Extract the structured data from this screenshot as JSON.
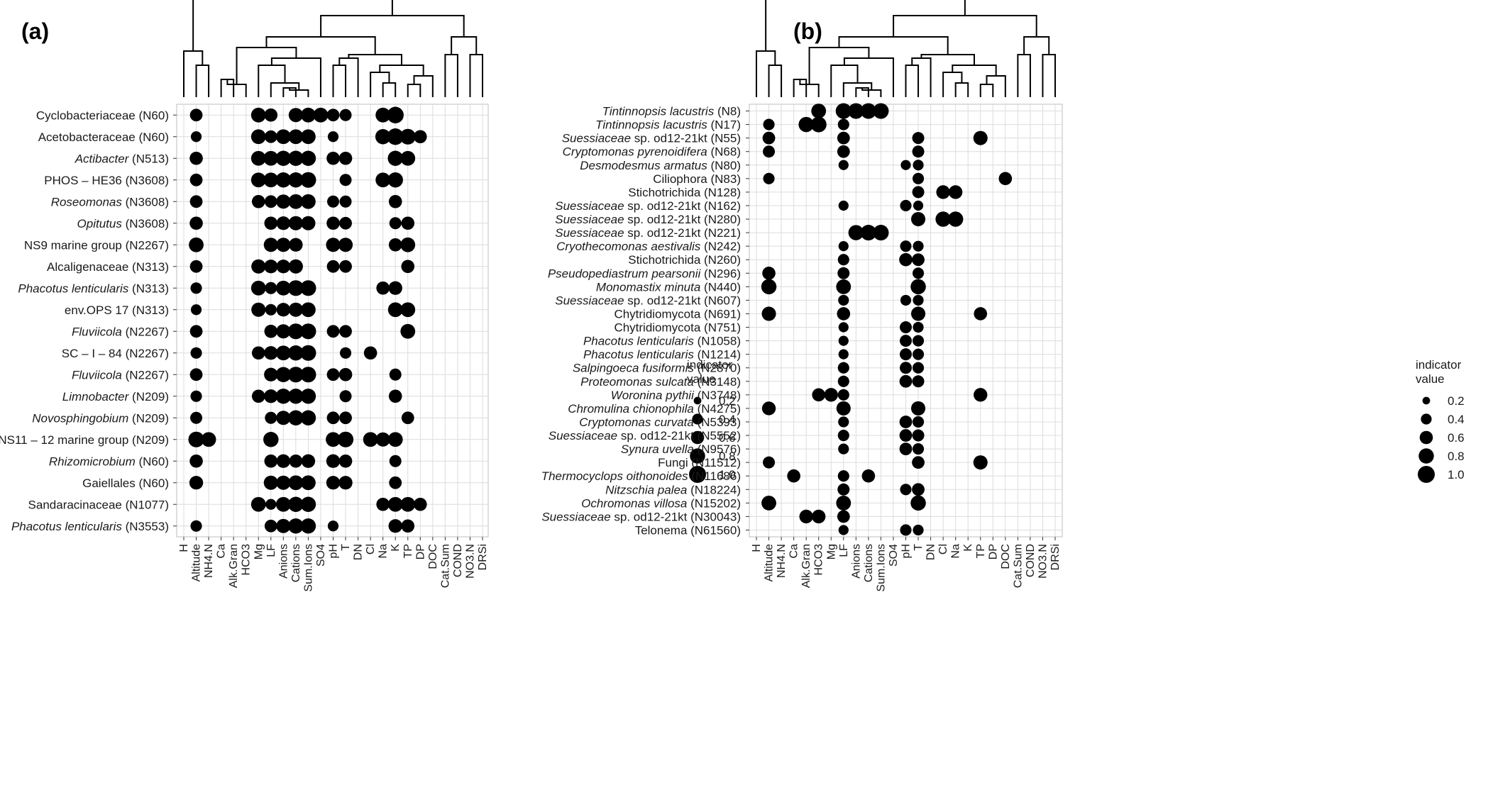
{
  "chart_data": [
    {
      "type": "scatter",
      "panel_label": "(a)",
      "x_categories": [
        "H",
        "Altitude",
        "NH4.N",
        "Ca",
        "Alk.Gran",
        "HCO3",
        "Mg",
        "LF",
        "Anions",
        "Cations",
        "Sum.Ions",
        "SO4",
        "pH",
        "T",
        "DN",
        "Cl",
        "Na",
        "K",
        "TP",
        "DP",
        "DOC",
        "Cat.Sum",
        "COND",
        "NO3.N",
        "DRSi"
      ],
      "rows": [
        {
          "label": "Cyclobacteriaceae (N60)",
          "italic": "",
          "rest": "Cyclobacteriaceae (N60)",
          "points": {
            "Altitude": 0.55,
            "Mg": 0.75,
            "LF": 0.6,
            "Cations": 0.7,
            "Sum.Ions": 0.75,
            "SO4": 0.75,
            "pH": 0.55,
            "T": 0.5,
            "Na": 0.75,
            "K": 0.95
          }
        },
        {
          "label": "Acetobacteraceae (N60)",
          "italic": "",
          "rest": "Acetobacteraceae (N60)",
          "points": {
            "Altitude": 0.4,
            "Mg": 0.75,
            "LF": 0.55,
            "Anions": 0.75,
            "Cations": 0.75,
            "Sum.Ions": 0.75,
            "pH": 0.4,
            "Na": 0.8,
            "K": 0.95,
            "TP": 0.85,
            "DP": 0.6
          }
        },
        {
          "label": "Actibacter (N513)",
          "italic": "Actibacter",
          "rest": " (N513)",
          "points": {
            "Altitude": 0.6,
            "Mg": 0.75,
            "LF": 0.75,
            "Anions": 0.8,
            "Cations": 0.8,
            "Sum.Ions": 0.8,
            "pH": 0.6,
            "T": 0.6,
            "K": 0.8,
            "TP": 0.75
          }
        },
        {
          "label": "PHOS – HE36 (N3608)",
          "italic": "",
          "rest": "PHOS – HE36 (N3608)",
          "points": {
            "Altitude": 0.55,
            "Mg": 0.75,
            "LF": 0.75,
            "Anions": 0.8,
            "Cations": 0.8,
            "Sum.Ions": 0.85,
            "T": 0.5,
            "Na": 0.75,
            "K": 0.8
          }
        },
        {
          "label": "Roseomonas (N3608)",
          "italic": "Roseomonas",
          "rest": " (N3608)",
          "points": {
            "Altitude": 0.55,
            "Mg": 0.6,
            "LF": 0.55,
            "Anions": 0.7,
            "Cations": 0.75,
            "Sum.Ions": 0.75,
            "pH": 0.5,
            "T": 0.5,
            "K": 0.6
          }
        },
        {
          "label": "Opitutus (N3608)",
          "italic": "Opitutus",
          "rest": " (N3608)",
          "points": {
            "Altitude": 0.6,
            "LF": 0.6,
            "Anions": 0.65,
            "Cations": 0.7,
            "Sum.Ions": 0.7,
            "pH": 0.6,
            "T": 0.55,
            "K": 0.5,
            "TP": 0.6
          }
        },
        {
          "label": "NS9 marine group (N2267)",
          "italic": "",
          "rest": "NS9 marine group (N2267)",
          "points": {
            "Altitude": 0.75,
            "LF": 0.7,
            "Anions": 0.7,
            "Cations": 0.65,
            "pH": 0.7,
            "T": 0.7,
            "K": 0.6,
            "TP": 0.75
          }
        },
        {
          "label": "Alcaligenaceae (N313)",
          "italic": "",
          "rest": "Alcaligenaceae (N313)",
          "points": {
            "Altitude": 0.55,
            "Mg": 0.7,
            "LF": 0.65,
            "Anions": 0.65,
            "Cations": 0.7,
            "pH": 0.55,
            "T": 0.55,
            "TP": 0.6
          }
        },
        {
          "label": "Phacotus lenticularis (N313)",
          "italic": "Phacotus lenticularis",
          "rest": " (N313)",
          "points": {
            "Altitude": 0.45,
            "Mg": 0.75,
            "LF": 0.5,
            "Anions": 0.75,
            "Cations": 0.85,
            "Sum.Ions": 0.85,
            "Na": 0.6,
            "K": 0.65
          }
        },
        {
          "label": "env.OPS 17 (N313)",
          "italic": "",
          "rest": "env.OPS 17 (N313)",
          "points": {
            "Altitude": 0.4,
            "Mg": 0.7,
            "LF": 0.45,
            "Anions": 0.65,
            "Cations": 0.7,
            "Sum.Ions": 0.75,
            "K": 0.75,
            "TP": 0.75
          }
        },
        {
          "label": "Fluviicola (N2267)",
          "italic": "Fluviicola",
          "rest": " (N2267)",
          "points": {
            "Altitude": 0.55,
            "LF": 0.6,
            "Anions": 0.7,
            "Cations": 0.85,
            "Sum.Ions": 0.85,
            "pH": 0.55,
            "T": 0.55,
            "TP": 0.75
          }
        },
        {
          "label": "SC – I – 84 (N2267)",
          "italic": "",
          "rest": "SC – I – 84 (N2267)",
          "points": {
            "Altitude": 0.45,
            "Mg": 0.6,
            "LF": 0.65,
            "Anions": 0.75,
            "Cations": 0.8,
            "Sum.Ions": 0.85,
            "T": 0.45,
            "Cl": 0.6
          }
        },
        {
          "label": "Fluviicola (N2267)",
          "italic": "Fluviicola",
          "rest": " (N2267)",
          "points": {
            "Altitude": 0.55,
            "LF": 0.65,
            "Anions": 0.8,
            "Cations": 0.85,
            "Sum.Ions": 0.85,
            "pH": 0.55,
            "T": 0.6,
            "K": 0.5
          }
        },
        {
          "label": "Limnobacter (N209)",
          "italic": "Limnobacter",
          "rest": " (N209)",
          "points": {
            "Altitude": 0.45,
            "Mg": 0.6,
            "LF": 0.65,
            "Anions": 0.8,
            "Cations": 0.8,
            "Sum.Ions": 0.8,
            "T": 0.5,
            "K": 0.6
          }
        },
        {
          "label": "Novosphingobium (N209)",
          "italic": "Novosphingobium",
          "rest": " (N209)",
          "points": {
            "Altitude": 0.5,
            "LF": 0.5,
            "Anions": 0.7,
            "Cations": 0.8,
            "Sum.Ions": 0.8,
            "pH": 0.55,
            "T": 0.55,
            "TP": 0.55
          }
        },
        {
          "label": "NS11 – 12 marine group (N209)",
          "italic": "",
          "rest": "NS11 – 12 marine group (N209)",
          "points": {
            "Altitude": 0.85,
            "NH4.N": 0.75,
            "LF": 0.8,
            "pH": 0.75,
            "T": 0.85,
            "Cl": 0.75,
            "Na": 0.7,
            "K": 0.75
          }
        },
        {
          "label": "Rhizomicrobium (N60)",
          "italic": "Rhizomicrobium",
          "rest": " (N60)",
          "points": {
            "Altitude": 0.6,
            "LF": 0.6,
            "Anions": 0.65,
            "Cations": 0.6,
            "Sum.Ions": 0.65,
            "pH": 0.65,
            "T": 0.6,
            "K": 0.5
          }
        },
        {
          "label": "Gaiellales (N60)",
          "italic": "",
          "rest": "Gaiellales (N60)",
          "points": {
            "Altitude": 0.65,
            "LF": 0.7,
            "Anions": 0.7,
            "Cations": 0.75,
            "Sum.Ions": 0.75,
            "pH": 0.65,
            "T": 0.65,
            "K": 0.55
          }
        },
        {
          "label": "Sandaracinaceae (N1077)",
          "italic": "",
          "rest": "Sandaracinaceae (N1077)",
          "points": {
            "Mg": 0.75,
            "LF": 0.4,
            "Anions": 0.75,
            "Cations": 0.8,
            "Sum.Ions": 0.8,
            "Na": 0.6,
            "K": 0.75,
            "TP": 0.75,
            "DP": 0.6
          }
        },
        {
          "label": "Phacotus lenticularis (N3553)",
          "italic": "Phacotus lenticularis",
          "rest": " (N3553)",
          "points": {
            "Altitude": 0.45,
            "LF": 0.55,
            "Anions": 0.7,
            "Cations": 0.8,
            "Sum.Ions": 0.8,
            "pH": 0.4,
            "K": 0.65,
            "TP": 0.6
          }
        }
      ],
      "legend": {
        "title_lines": [
          "indicator",
          "value"
        ],
        "entries": [
          0.2,
          0.4,
          0.6,
          0.8,
          1.0
        ],
        "entry_labels": [
          "0.2",
          "0.4",
          "0.6",
          "0.8",
          "1.0"
        ],
        "placement": "right"
      },
      "grid": true
    },
    {
      "type": "scatter",
      "panel_label": "(b)",
      "x_categories": [
        "H",
        "Altitude",
        "NH4.N",
        "Ca",
        "Alk.Gran",
        "HCO3",
        "Mg",
        "LF",
        "Anions",
        "Cations",
        "Sum.Ions",
        "SO4",
        "pH",
        "T",
        "DN",
        "Cl",
        "Na",
        "K",
        "TP",
        "DP",
        "DOC",
        "Cat.Sum",
        "COND",
        "NO3.N",
        "DRSi"
      ],
      "rows": [
        {
          "label": "Tintinnopsis lacustris (N8)",
          "italic": "Tintinnopsis lacustris",
          "rest": " (N8)",
          "points": {
            "HCO3": 0.75,
            "LF": 0.85,
            "Anions": 0.85,
            "Cations": 0.85,
            "Sum.Ions": 0.85
          }
        },
        {
          "label": "Tintinnopsis lacustris (N17)",
          "italic": "Tintinnopsis lacustris",
          "rest": " (N17)",
          "points": {
            "Altitude": 0.45,
            "Alk.Gran": 0.8,
            "HCO3": 0.85,
            "LF": 0.45
          }
        },
        {
          "label": "Suessiaceae sp. od12-21kt (N55)",
          "italic": "Suessiaceae",
          "rest": " sp. od12-21kt (N55)",
          "points": {
            "Altitude": 0.55,
            "LF": 0.55,
            "T": 0.5,
            "TP": 0.7
          }
        },
        {
          "label": "Cryptomonas pyrenoidifera (N68)",
          "italic": "Cryptomonas pyrenoidifera",
          "rest": " (N68)",
          "points": {
            "Altitude": 0.5,
            "LF": 0.55,
            "T": 0.5
          }
        },
        {
          "label": "Desmodesmus armatus (N80)",
          "italic": "Desmodesmus armatus",
          "rest": " (N80)",
          "points": {
            "LF": 0.35,
            "pH": 0.35,
            "T": 0.4
          }
        },
        {
          "label": "Ciliophora (N83)",
          "italic": "",
          "rest": "Ciliophora (N83)",
          "points": {
            "Altitude": 0.45,
            "T": 0.45,
            "DOC": 0.6
          }
        },
        {
          "label": "Stichotrichida (N128)",
          "italic": "",
          "rest": "Stichotrichida (N128)",
          "points": {
            "T": 0.5,
            "Cl": 0.65,
            "Na": 0.65
          }
        },
        {
          "label": "Suessiaceae sp. od12-21kt (N162)",
          "italic": "Suessiaceae",
          "rest": " sp. od12-21kt (N162)",
          "points": {
            "LF": 0.35,
            "pH": 0.45,
            "T": 0.35
          }
        },
        {
          "label": "Suessiaceae sp. od12-21kt (N280)",
          "italic": "Suessiaceae",
          "rest": " sp. od12-21kt (N280)",
          "points": {
            "T": 0.7,
            "Cl": 0.8,
            "Na": 0.8
          }
        },
        {
          "label": "Suessiaceae sp. od12-21kt (N221)",
          "italic": "Suessiaceae",
          "rest": " sp. od12-21kt (N221)",
          "points": {
            "Anions": 0.8,
            "Cations": 0.85,
            "Sum.Ions": 0.85
          }
        },
        {
          "label": "Cryothecomonas aestivalis (N242)",
          "italic": "Cryothecomonas aestivalis",
          "rest": " (N242)",
          "points": {
            "LF": 0.35,
            "pH": 0.45,
            "T": 0.4
          }
        },
        {
          "label": "Stichotrichida (N260)",
          "italic": "",
          "rest": "Stichotrichida (N260)",
          "points": {
            "LF": 0.45,
            "pH": 0.6,
            "T": 0.55
          }
        },
        {
          "label": "Pseudopediastrum pearsonii (N296)",
          "italic": "Pseudopediastrum pearsonii",
          "rest": " (N296)",
          "points": {
            "Altitude": 0.6,
            "LF": 0.5,
            "T": 0.45
          }
        },
        {
          "label": "Monomastix minuta (N440)",
          "italic": "Monomastix minuta",
          "rest": " (N440)",
          "points": {
            "Altitude": 0.8,
            "LF": 0.75,
            "T": 0.8
          }
        },
        {
          "label": "Suessiaceae sp. od12-21kt (N607)",
          "italic": "Suessiaceae",
          "rest": " sp. od12-21kt (N607)",
          "points": {
            "LF": 0.4,
            "pH": 0.4,
            "T": 0.4
          }
        },
        {
          "label": "Chytridiomycota (N691)",
          "italic": "",
          "rest": "Chytridiomycota (N691)",
          "points": {
            "Altitude": 0.7,
            "LF": 0.6,
            "T": 0.7,
            "TP": 0.6
          }
        },
        {
          "label": "Chytridiomycota (N751)",
          "italic": "",
          "rest": "Chytridiomycota (N751)",
          "points": {
            "LF": 0.35,
            "pH": 0.5,
            "T": 0.4
          }
        },
        {
          "label": "Phacotus lenticularis (N1058)",
          "italic": "Phacotus lenticularis",
          "rest": " (N1058)",
          "points": {
            "LF": 0.35,
            "pH": 0.5,
            "T": 0.45
          }
        },
        {
          "label": "Phacotus lenticularis (N1214)",
          "italic": "Phacotus lenticularis",
          "rest": " (N1214)",
          "points": {
            "LF": 0.35,
            "pH": 0.5,
            "T": 0.45
          }
        },
        {
          "label": "Salpingoeca fusiformis (N2870)",
          "italic": "Salpingoeca fusiformis",
          "rest": " (N2870)",
          "points": {
            "LF": 0.45,
            "pH": 0.5,
            "T": 0.45
          }
        },
        {
          "label": "Proteomonas sulcata (N3148)",
          "italic": "Proteomonas sulcata",
          "rest": " (N3148)",
          "points": {
            "LF": 0.45,
            "pH": 0.55,
            "T": 0.5
          }
        },
        {
          "label": "Woronina pythii (N3748)",
          "italic": "Woronina pythii",
          "rest": " (N3748)",
          "points": {
            "HCO3": 0.6,
            "Mg": 0.65,
            "LF": 0.45,
            "TP": 0.65
          }
        },
        {
          "label": "Chromulina chionophila (N4275)",
          "italic": "Chromulina chionophila",
          "rest": " (N4275)",
          "points": {
            "Altitude": 0.65,
            "LF": 0.7,
            "T": 0.7
          }
        },
        {
          "label": "Cryptomonas curvata (N5393)",
          "italic": "Cryptomonas curvata",
          "rest": " (N5393)",
          "points": {
            "LF": 0.4,
            "pH": 0.55,
            "T": 0.45
          }
        },
        {
          "label": "Suessiaceae sp. od12-21kt (N5552)",
          "italic": "Suessiaceae",
          "rest": " sp. od12-21kt (N5552)",
          "points": {
            "LF": 0.45,
            "pH": 0.55,
            "T": 0.5
          }
        },
        {
          "label": "Synura uvella (N9576)",
          "italic": "Synura uvella",
          "rest": " (N9576)",
          "points": {
            "LF": 0.4,
            "pH": 0.55,
            "T": 0.45
          }
        },
        {
          "label": "Fungi (N11512)",
          "italic": "",
          "rest": "Fungi (N11512)",
          "points": {
            "Altitude": 0.5,
            "T": 0.55,
            "TP": 0.7
          }
        },
        {
          "label": "Thermocyclops oithonoides (N11686)",
          "italic": "Thermocyclops oithonoides",
          "rest": " (N11686)",
          "points": {
            "Ca": 0.6,
            "LF": 0.45,
            "Cations": 0.6
          }
        },
        {
          "label": "Nitzschia palea (N18224)",
          "italic": "Nitzschia palea",
          "rest": " (N18224)",
          "points": {
            "LF": 0.5,
            "pH": 0.45,
            "T": 0.55
          }
        },
        {
          "label": "Ochromonas villosa (N15202)",
          "italic": "Ochromonas villosa",
          "rest": " (N15202)",
          "points": {
            "Altitude": 0.75,
            "LF": 0.75,
            "T": 0.8
          }
        },
        {
          "label": "Suessiaceae sp. od12-21kt (N30043)",
          "italic": "Suessiaceae",
          "rest": " sp. od12-21kt (N30043)",
          "points": {
            "Alk.Gran": 0.65,
            "HCO3": 0.65,
            "LF": 0.55
          }
        },
        {
          "label": "Telonema (N61560)",
          "italic": "",
          "rest": "Telonema (N61560)",
          "points": {
            "LF": 0.35,
            "pH": 0.45,
            "T": 0.4
          }
        }
      ],
      "legend": {
        "title_lines": [
          "indicator",
          "value"
        ],
        "entries": [
          0.2,
          0.4,
          0.6,
          0.8,
          1.0
        ],
        "entry_labels": [
          "0.2",
          "0.4",
          "0.6",
          "0.8",
          "1.0"
        ],
        "placement": "right"
      },
      "grid": true
    }
  ]
}
